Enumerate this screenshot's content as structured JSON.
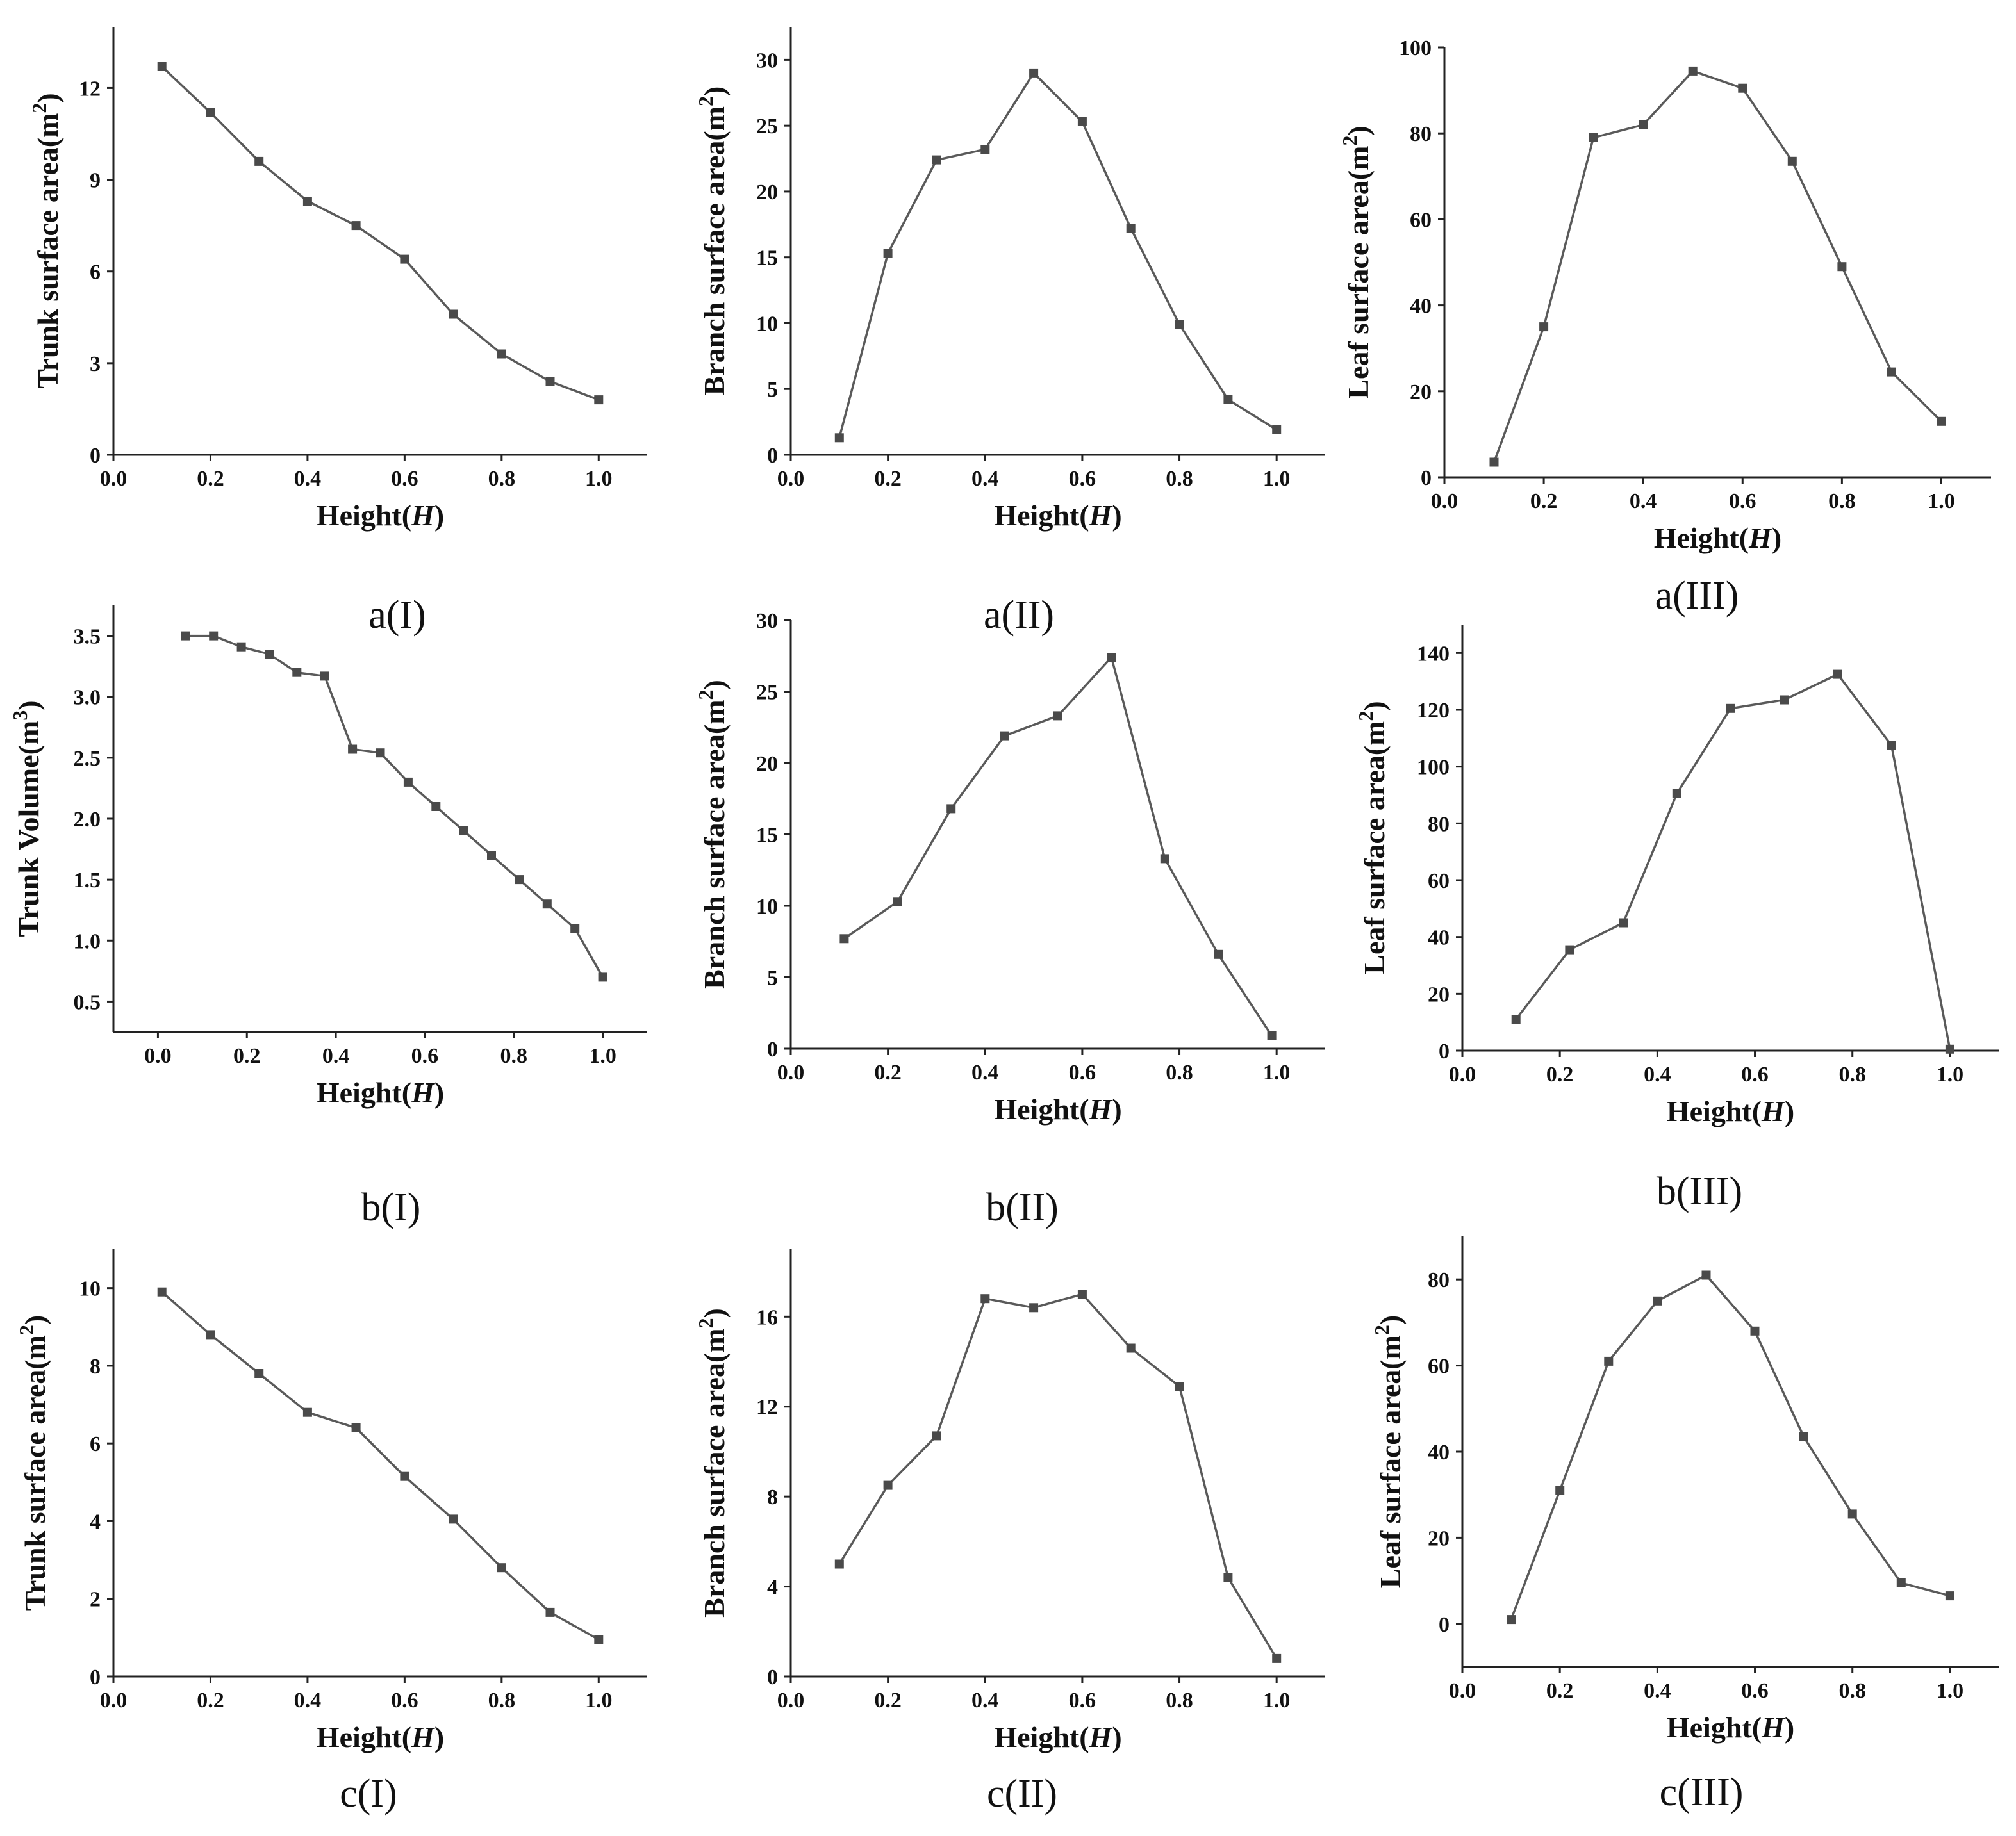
{
  "chart_data": [
    {
      "panel": "a(I)",
      "type": "line",
      "xlabel": "Height(H)",
      "ylabel": "Trunk surface area(m2)",
      "xlim": [
        0.0,
        1.1
      ],
      "ylim": [
        0,
        14
      ],
      "xticks": [
        0.0,
        0.2,
        0.4,
        0.6,
        0.8,
        1.0
      ],
      "yticks": [
        0,
        3,
        6,
        9,
        12
      ],
      "x": [
        0.1,
        0.2,
        0.3,
        0.4,
        0.5,
        0.6,
        0.7,
        0.8,
        0.9,
        1.0
      ],
      "y": [
        12.7,
        11.2,
        9.6,
        8.3,
        7.5,
        6.4,
        4.6,
        3.3,
        2.4,
        1.8
      ]
    },
    {
      "panel": "a(II)",
      "type": "line",
      "xlabel": "Height(H)",
      "ylabel": "Branch surface area(m2)",
      "xlim": [
        0.0,
        1.1
      ],
      "ylim": [
        0,
        32.5
      ],
      "xticks": [
        0.0,
        0.2,
        0.4,
        0.6,
        0.8,
        1.0
      ],
      "yticks": [
        0,
        5,
        10,
        15,
        20,
        25,
        30
      ],
      "x": [
        0.1,
        0.2,
        0.3,
        0.4,
        0.5,
        0.6,
        0.7,
        0.8,
        0.9,
        1.0
      ],
      "y": [
        1.3,
        15.3,
        22.4,
        23.2,
        29.0,
        25.3,
        17.2,
        9.9,
        4.2,
        1.9
      ]
    },
    {
      "panel": "a(III)",
      "type": "line",
      "xlabel": "Height(H)",
      "ylabel": "Leaf surface area(m2)",
      "xlim": [
        0.0,
        1.1
      ],
      "ylim": [
        0,
        100
      ],
      "xticks": [
        0.0,
        0.2,
        0.4,
        0.6,
        0.8,
        1.0
      ],
      "yticks": [
        0,
        20,
        40,
        60,
        80,
        100
      ],
      "x": [
        0.1,
        0.2,
        0.3,
        0.4,
        0.5,
        0.6,
        0.7,
        0.8,
        0.9,
        1.0
      ],
      "y": [
        3.5,
        35.0,
        79.0,
        82.0,
        94.5,
        90.5,
        73.5,
        49.0,
        24.5,
        13.0
      ]
    },
    {
      "panel": "b(I)",
      "type": "line",
      "xlabel": "Height(H)",
      "ylabel": "Trunk Volume(m3)",
      "xlim": [
        -0.1,
        1.1
      ],
      "ylim": [
        0.25,
        3.75
      ],
      "xticks": [
        0.0,
        0.2,
        0.4,
        0.6,
        0.8,
        1.0
      ],
      "yticks": [
        0.5,
        1.0,
        1.5,
        2.0,
        2.5,
        3.0,
        3.5
      ],
      "x": [
        0.0625,
        0.125,
        0.1875,
        0.25,
        0.3125,
        0.375,
        0.4375,
        0.5,
        0.5625,
        0.625,
        0.6875,
        0.75,
        0.8125,
        0.875,
        0.9375,
        1.0
      ],
      "y": [
        3.5,
        3.5,
        3.41,
        3.35,
        3.2,
        3.17,
        2.57,
        2.54,
        2.3,
        2.1,
        1.9,
        1.7,
        1.5,
        1.3,
        1.1,
        0.7
      ]
    },
    {
      "panel": "b(II)",
      "type": "line",
      "xlabel": "Height(H)",
      "ylabel": "Branch surface area(m2)",
      "xlim": [
        0.0,
        1.1
      ],
      "ylim": [
        0,
        30
      ],
      "xticks": [
        0.0,
        0.2,
        0.4,
        0.6,
        0.8,
        1.0
      ],
      "yticks": [
        0,
        5,
        10,
        15,
        20,
        25,
        30
      ],
      "x": [
        0.11,
        0.22,
        0.33,
        0.44,
        0.55,
        0.66,
        0.77,
        0.88,
        0.99
      ],
      "y": [
        7.7,
        10.3,
        16.8,
        21.9,
        23.3,
        27.4,
        13.3,
        6.6,
        0.9
      ]
    },
    {
      "panel": "b(III)",
      "type": "line",
      "xlabel": "Height(H)",
      "ylabel": "Leaf surface area(m2)",
      "xlim": [
        0.0,
        1.1
      ],
      "ylim": [
        0,
        150
      ],
      "xticks": [
        0.0,
        0.2,
        0.4,
        0.6,
        0.8,
        1.0
      ],
      "yticks": [
        0,
        20,
        40,
        60,
        80,
        100,
        120,
        140
      ],
      "x": [
        0.11,
        0.22,
        0.33,
        0.44,
        0.55,
        0.66,
        0.77,
        0.88,
        1.0
      ],
      "y": [
        11,
        35.5,
        45,
        90.5,
        120.5,
        123.5,
        132.5,
        107.5,
        0.5
      ]
    },
    {
      "panel": "c(I)",
      "type": "line",
      "xlabel": "Height(H)",
      "ylabel": "Trunk surface area(m2)",
      "xlim": [
        0.0,
        1.1
      ],
      "ylim": [
        0,
        11
      ],
      "xticks": [
        0.0,
        0.2,
        0.4,
        0.6,
        0.8,
        1.0
      ],
      "yticks": [
        0,
        2,
        4,
        6,
        8,
        10
      ],
      "x": [
        0.1,
        0.2,
        0.3,
        0.4,
        0.5,
        0.6,
        0.7,
        0.8,
        0.9,
        1.0
      ],
      "y": [
        9.9,
        8.8,
        7.8,
        6.8,
        6.4,
        5.15,
        4.05,
        2.8,
        1.65,
        0.95
      ]
    },
    {
      "panel": "c(II)",
      "type": "line",
      "xlabel": "Height(H)",
      "ylabel": "Branch surface area(m2)",
      "xlim": [
        0.0,
        1.1
      ],
      "ylim": [
        0,
        19
      ],
      "xticks": [
        0.0,
        0.2,
        0.4,
        0.6,
        0.8,
        1.0
      ],
      "yticks": [
        0,
        4,
        8,
        12,
        16
      ],
      "x": [
        0.1,
        0.2,
        0.3,
        0.4,
        0.5,
        0.6,
        0.7,
        0.8,
        0.9,
        1.0
      ],
      "y": [
        5.0,
        8.5,
        10.7,
        16.8,
        16.4,
        17.0,
        14.6,
        12.9,
        4.4,
        0.8
      ]
    },
    {
      "panel": "c(III)",
      "type": "line",
      "xlabel": "Height(H)",
      "ylabel": "Leaf surface area(m2)",
      "xlim": [
        0.0,
        1.1
      ],
      "ylim": [
        -10,
        90
      ],
      "xticks": [
        0.0,
        0.2,
        0.4,
        0.6,
        0.8,
        1.0
      ],
      "yticks": [
        0,
        20,
        40,
        60,
        80
      ],
      "x": [
        0.1,
        0.2,
        0.3,
        0.4,
        0.5,
        0.6,
        0.7,
        0.8,
        0.9,
        1.0
      ],
      "y": [
        1,
        31,
        61,
        75,
        81,
        68,
        43.5,
        25.5,
        9.5,
        6.5
      ]
    }
  ]
}
